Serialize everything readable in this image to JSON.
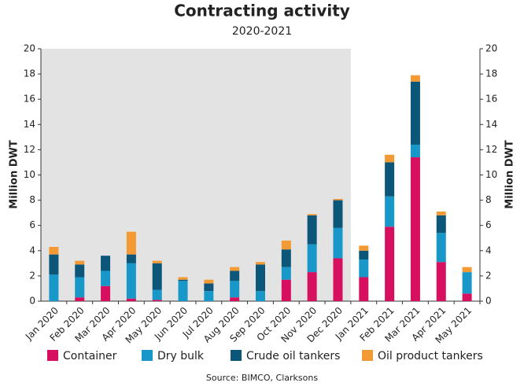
{
  "chart_data": {
    "type": "stacked_bar",
    "title": "Contracting activity",
    "subtitle": "2020-2021",
    "categories": [
      "Jan 2020",
      "Feb 2020",
      "Mar 2020",
      "Apr 2020",
      "May 2020",
      "Jun 2020",
      "Jul 2020",
      "Aug 2020",
      "Sep 2020",
      "Oct 2020",
      "Nov 2020",
      "Dec 2020",
      "Jan 2021",
      "Feb 2021",
      "Mar 2021",
      "Apr 2021",
      "May 2021"
    ],
    "series": [
      {
        "name": "Container",
        "color": "#d6105e",
        "values": [
          0,
          0.3,
          1.2,
          0.2,
          0.1,
          0,
          0,
          0.3,
          0,
          1.7,
          2.3,
          3.4,
          1.9,
          5.9,
          11.4,
          3.1,
          0.6
        ]
      },
      {
        "name": "Dry bulk",
        "color": "#1798c9",
        "values": [
          2.1,
          1.6,
          1.2,
          2.8,
          0.8,
          1.6,
          0.8,
          1.3,
          0.8,
          1.0,
          2.2,
          2.4,
          1.4,
          2.4,
          1.0,
          2.3,
          1.7
        ]
      },
      {
        "name": "Crude oil tankers",
        "color": "#0c5779",
        "values": [
          1.6,
          1.0,
          1.2,
          0.7,
          2.1,
          0.1,
          0.6,
          0.8,
          2.1,
          1.4,
          2.3,
          2.2,
          0.7,
          2.7,
          5.0,
          1.4,
          0
        ]
      },
      {
        "name": "Oil product tankers",
        "color": "#f39a34",
        "values": [
          0.6,
          0.3,
          0,
          1.8,
          0.2,
          0.2,
          0.3,
          0.3,
          0.2,
          0.7,
          0.1,
          0.1,
          0.4,
          0.6,
          0.5,
          0.3,
          0.4
        ]
      }
    ],
    "ylabel": "Million DWT",
    "y2label": "Million DWT",
    "ylim": [
      0,
      20
    ],
    "yticks": [
      0,
      2,
      4,
      6,
      8,
      10,
      12,
      14,
      16,
      18,
      20
    ],
    "y2lim": [
      0,
      20
    ],
    "y2ticks": [
      0,
      2,
      4,
      6,
      8,
      10,
      12,
      14,
      16,
      18,
      20
    ],
    "source": "Source: BIMCO, Clarksons",
    "legend": "bottom"
  }
}
